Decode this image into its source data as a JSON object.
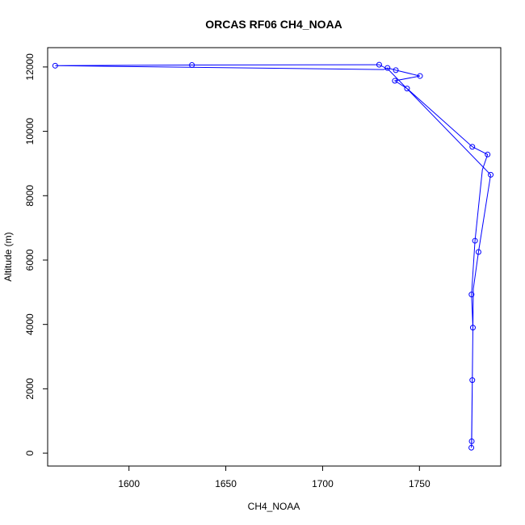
{
  "chart_data": {
    "type": "line",
    "title": "ORCAS RF06 CH4_NOAA",
    "xlabel": "CH4_NOAA",
    "ylabel": "Altitude (m)",
    "xlim": [
      1558,
      1792
    ],
    "ylim": [
      -400,
      12600
    ],
    "xticks": [
      1600,
      1650,
      1700,
      1750
    ],
    "yticks": [
      0,
      2000,
      4000,
      6000,
      8000,
      10000,
      12000
    ],
    "grid": false,
    "series_color": "#0000ff",
    "series": [
      {
        "points": [
          {
            "x": 1776.8,
            "y": 170
          },
          {
            "x": 1777.0,
            "y": 370
          },
          {
            "x": 1777.3,
            "y": 2270
          },
          {
            "x": 1777.6,
            "y": 3900
          },
          {
            "x": 1776.9,
            "y": 4930
          },
          {
            "x": 1778.7,
            "y": 6600
          },
          {
            "x": 1780.5,
            "y": 6250
          },
          {
            "x": 1786.8,
            "y": 8650
          },
          {
            "x": 1785.2,
            "y": 9280
          },
          {
            "x": 1777.3,
            "y": 9520
          },
          {
            "x": 1743.6,
            "y": 11330
          },
          {
            "x": 1737.3,
            "y": 11570
          },
          {
            "x": 1750.3,
            "y": 11720
          },
          {
            "x": 1737.8,
            "y": 11900
          },
          {
            "x": 1733.5,
            "y": 11970
          },
          {
            "x": 1729.2,
            "y": 12070
          },
          {
            "x": 1632.5,
            "y": 12060
          },
          {
            "x": 1561.9,
            "y": 12040
          }
        ],
        "path_order": [
          {
            "x": 1776.8,
            "y": 170
          },
          {
            "x": 1777.0,
            "y": 370
          },
          {
            "x": 1777.3,
            "y": 2270
          },
          {
            "x": 1777.6,
            "y": 3900
          },
          {
            "x": 1776.9,
            "y": 4930
          },
          {
            "x": 1778.7,
            "y": 6600
          },
          {
            "x": 1782.5,
            "y": 8800
          },
          {
            "x": 1785.2,
            "y": 9280
          },
          {
            "x": 1777.3,
            "y": 9520
          },
          {
            "x": 1743.6,
            "y": 11330
          },
          {
            "x": 1737.3,
            "y": 11570
          },
          {
            "x": 1750.3,
            "y": 11720
          },
          {
            "x": 1737.8,
            "y": 11900
          },
          {
            "x": 1733.5,
            "y": 11970
          },
          {
            "x": 1731.5,
            "y": 11920
          },
          {
            "x": 1561.9,
            "y": 12040
          },
          {
            "x": 1632.5,
            "y": 12060
          },
          {
            "x": 1729.2,
            "y": 12070
          },
          {
            "x": 1734.0,
            "y": 11920
          },
          {
            "x": 1786.8,
            "y": 8650
          },
          {
            "x": 1780.5,
            "y": 6250
          },
          {
            "x": 1777.8,
            "y": 5100
          },
          {
            "x": 1777.6,
            "y": 3900
          },
          {
            "x": 1776.9,
            "y": 250
          },
          {
            "x": 1776.8,
            "y": 170
          }
        ]
      }
    ]
  }
}
